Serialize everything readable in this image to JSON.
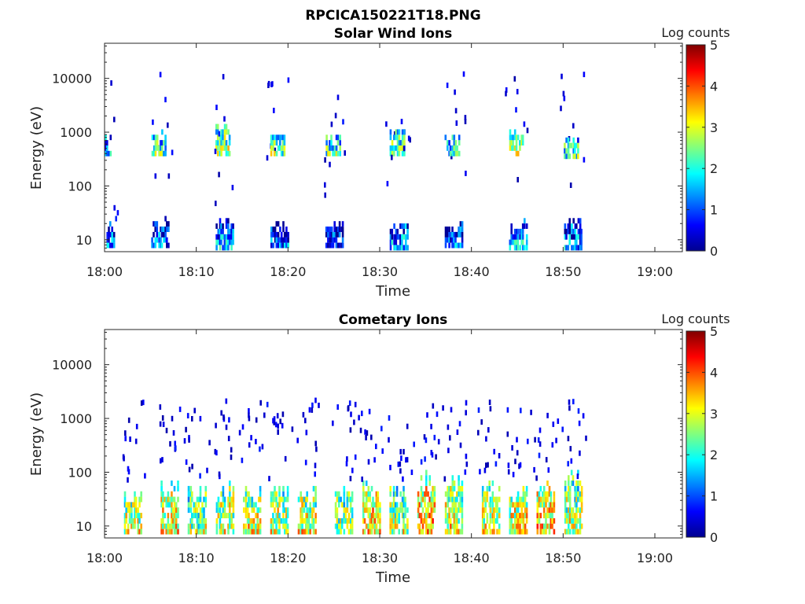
{
  "figure": {
    "title": "RPCICA150221T18.PNG"
  },
  "chart_data": [
    {
      "type": "heatmap",
      "title": "Solar Wind Ions",
      "xlabel": "Time",
      "ylabel": "Energy (eV)",
      "xlim": [
        "18:00",
        "19:03"
      ],
      "xticks": [
        "18:00",
        "18:10",
        "18:20",
        "18:30",
        "18:40",
        "18:50",
        "19:00"
      ],
      "y_scale": "log",
      "ylim": [
        6,
        45000
      ],
      "yticks": [
        10,
        100,
        1000,
        10000
      ],
      "ytick_labels": [
        "10",
        "100",
        "1000",
        "10000"
      ],
      "colorbar": {
        "label": "Log counts",
        "range": [
          0,
          5
        ],
        "ticks": [
          "0",
          "1",
          "2",
          "3",
          "4",
          "5"
        ],
        "colormap": "jet"
      },
      "grid": false,
      "data_extent": [
        "18:00",
        "18:53"
      ],
      "bursts": [
        {
          "t": "18:00",
          "energy_band": "low",
          "e_range": [
            7,
            27
          ],
          "level": 1.2
        },
        {
          "t": "18:00",
          "energy_band": "mid",
          "e_range": [
            450,
            1100
          ],
          "level": 1.8
        },
        {
          "t": "18:06",
          "energy_band": "low",
          "e_range": [
            7,
            27
          ],
          "level": 1.2
        },
        {
          "t": "18:06",
          "energy_band": "mid",
          "e_range": [
            450,
            1300
          ],
          "level": 2.2
        },
        {
          "t": "18:13",
          "energy_band": "low",
          "e_range": [
            8,
            30
          ],
          "level": 1.5
        },
        {
          "t": "18:13",
          "energy_band": "mid",
          "e_range": [
            450,
            1800
          ],
          "level": 2.6
        },
        {
          "t": "18:19",
          "energy_band": "low",
          "e_range": [
            7,
            27
          ],
          "level": 1.1
        },
        {
          "t": "18:19",
          "energy_band": "mid",
          "e_range": [
            450,
            1200
          ],
          "level": 2.4
        },
        {
          "t": "18:25",
          "energy_band": "low",
          "e_range": [
            7,
            27
          ],
          "level": 1.0
        },
        {
          "t": "18:25",
          "energy_band": "mid",
          "e_range": [
            450,
            1100
          ],
          "level": 2.3
        },
        {
          "t": "18:32",
          "energy_band": "low",
          "e_range": [
            8,
            28
          ],
          "level": 1.4
        },
        {
          "t": "18:32",
          "energy_band": "mid",
          "e_range": [
            450,
            1300
          ],
          "level": 2.3
        },
        {
          "t": "18:38",
          "energy_band": "low",
          "e_range": [
            7,
            27
          ],
          "level": 1.1
        },
        {
          "t": "18:38",
          "energy_band": "mid",
          "e_range": [
            450,
            1100
          ],
          "level": 2.1
        },
        {
          "t": "18:45",
          "energy_band": "low",
          "e_range": [
            8,
            28
          ],
          "level": 1.6
        },
        {
          "t": "18:45",
          "energy_band": "mid",
          "e_range": [
            450,
            1300
          ],
          "level": 2.7
        },
        {
          "t": "18:51",
          "energy_band": "low",
          "e_range": [
            8,
            28
          ],
          "level": 1.3
        },
        {
          "t": "18:51",
          "energy_band": "mid",
          "e_range": [
            400,
            900
          ],
          "level": 2.2
        }
      ]
    },
    {
      "type": "heatmap",
      "title": "Cometary Ions",
      "xlabel": "Time",
      "ylabel": "Energy (eV)",
      "xlim": [
        "18:00",
        "19:03"
      ],
      "xticks": [
        "18:00",
        "18:10",
        "18:20",
        "18:30",
        "18:40",
        "18:50",
        "19:00"
      ],
      "y_scale": "log",
      "ylim": [
        6,
        45000
      ],
      "yticks": [
        10,
        100,
        1000,
        10000
      ],
      "ytick_labels": [
        "10",
        "100",
        "1000",
        "10000"
      ],
      "colorbar": {
        "label": "Log counts",
        "range": [
          0,
          5
        ],
        "ticks": [
          "0",
          "1",
          "2",
          "3",
          "4",
          "5"
        ],
        "colormap": "jet"
      },
      "grid": false,
      "data_extent": [
        "18:00",
        "18:53"
      ],
      "bursts": [
        {
          "t": "18:03",
          "energy_band": "low",
          "e_range": [
            7,
            60
          ],
          "level": 3.0
        },
        {
          "t": "18:07",
          "energy_band": "low",
          "e_range": [
            7,
            80
          ],
          "level": 3.2
        },
        {
          "t": "18:10",
          "energy_band": "low",
          "e_range": [
            7,
            70
          ],
          "level": 2.7
        },
        {
          "t": "18:13",
          "energy_band": "low",
          "e_range": [
            7,
            80
          ],
          "level": 3.0
        },
        {
          "t": "18:16",
          "energy_band": "low",
          "e_range": [
            7,
            70
          ],
          "level": 3.1
        },
        {
          "t": "18:19",
          "energy_band": "low",
          "e_range": [
            7,
            70
          ],
          "level": 3.0
        },
        {
          "t": "18:22",
          "energy_band": "low",
          "e_range": [
            7,
            60
          ],
          "level": 3.1
        },
        {
          "t": "18:26",
          "energy_band": "low",
          "e_range": [
            7,
            60
          ],
          "level": 2.8
        },
        {
          "t": "18:29",
          "energy_band": "low",
          "e_range": [
            7,
            80
          ],
          "level": 3.4
        },
        {
          "t": "18:32",
          "energy_band": "low",
          "e_range": [
            7,
            70
          ],
          "level": 2.9
        },
        {
          "t": "18:35",
          "energy_band": "low",
          "e_range": [
            7,
            120
          ],
          "level": 3.5
        },
        {
          "t": "18:38",
          "energy_band": "low",
          "e_range": [
            7,
            110
          ],
          "level": 3.1
        },
        {
          "t": "18:42",
          "energy_band": "low",
          "e_range": [
            7,
            90
          ],
          "level": 3.0
        },
        {
          "t": "18:45",
          "energy_band": "low",
          "e_range": [
            7,
            80
          ],
          "level": 3.2
        },
        {
          "t": "18:48",
          "energy_band": "low",
          "e_range": [
            7,
            90
          ],
          "level": 3.4
        },
        {
          "t": "18:51",
          "energy_band": "low",
          "e_range": [
            7,
            120
          ],
          "level": 2.9
        }
      ]
    }
  ]
}
